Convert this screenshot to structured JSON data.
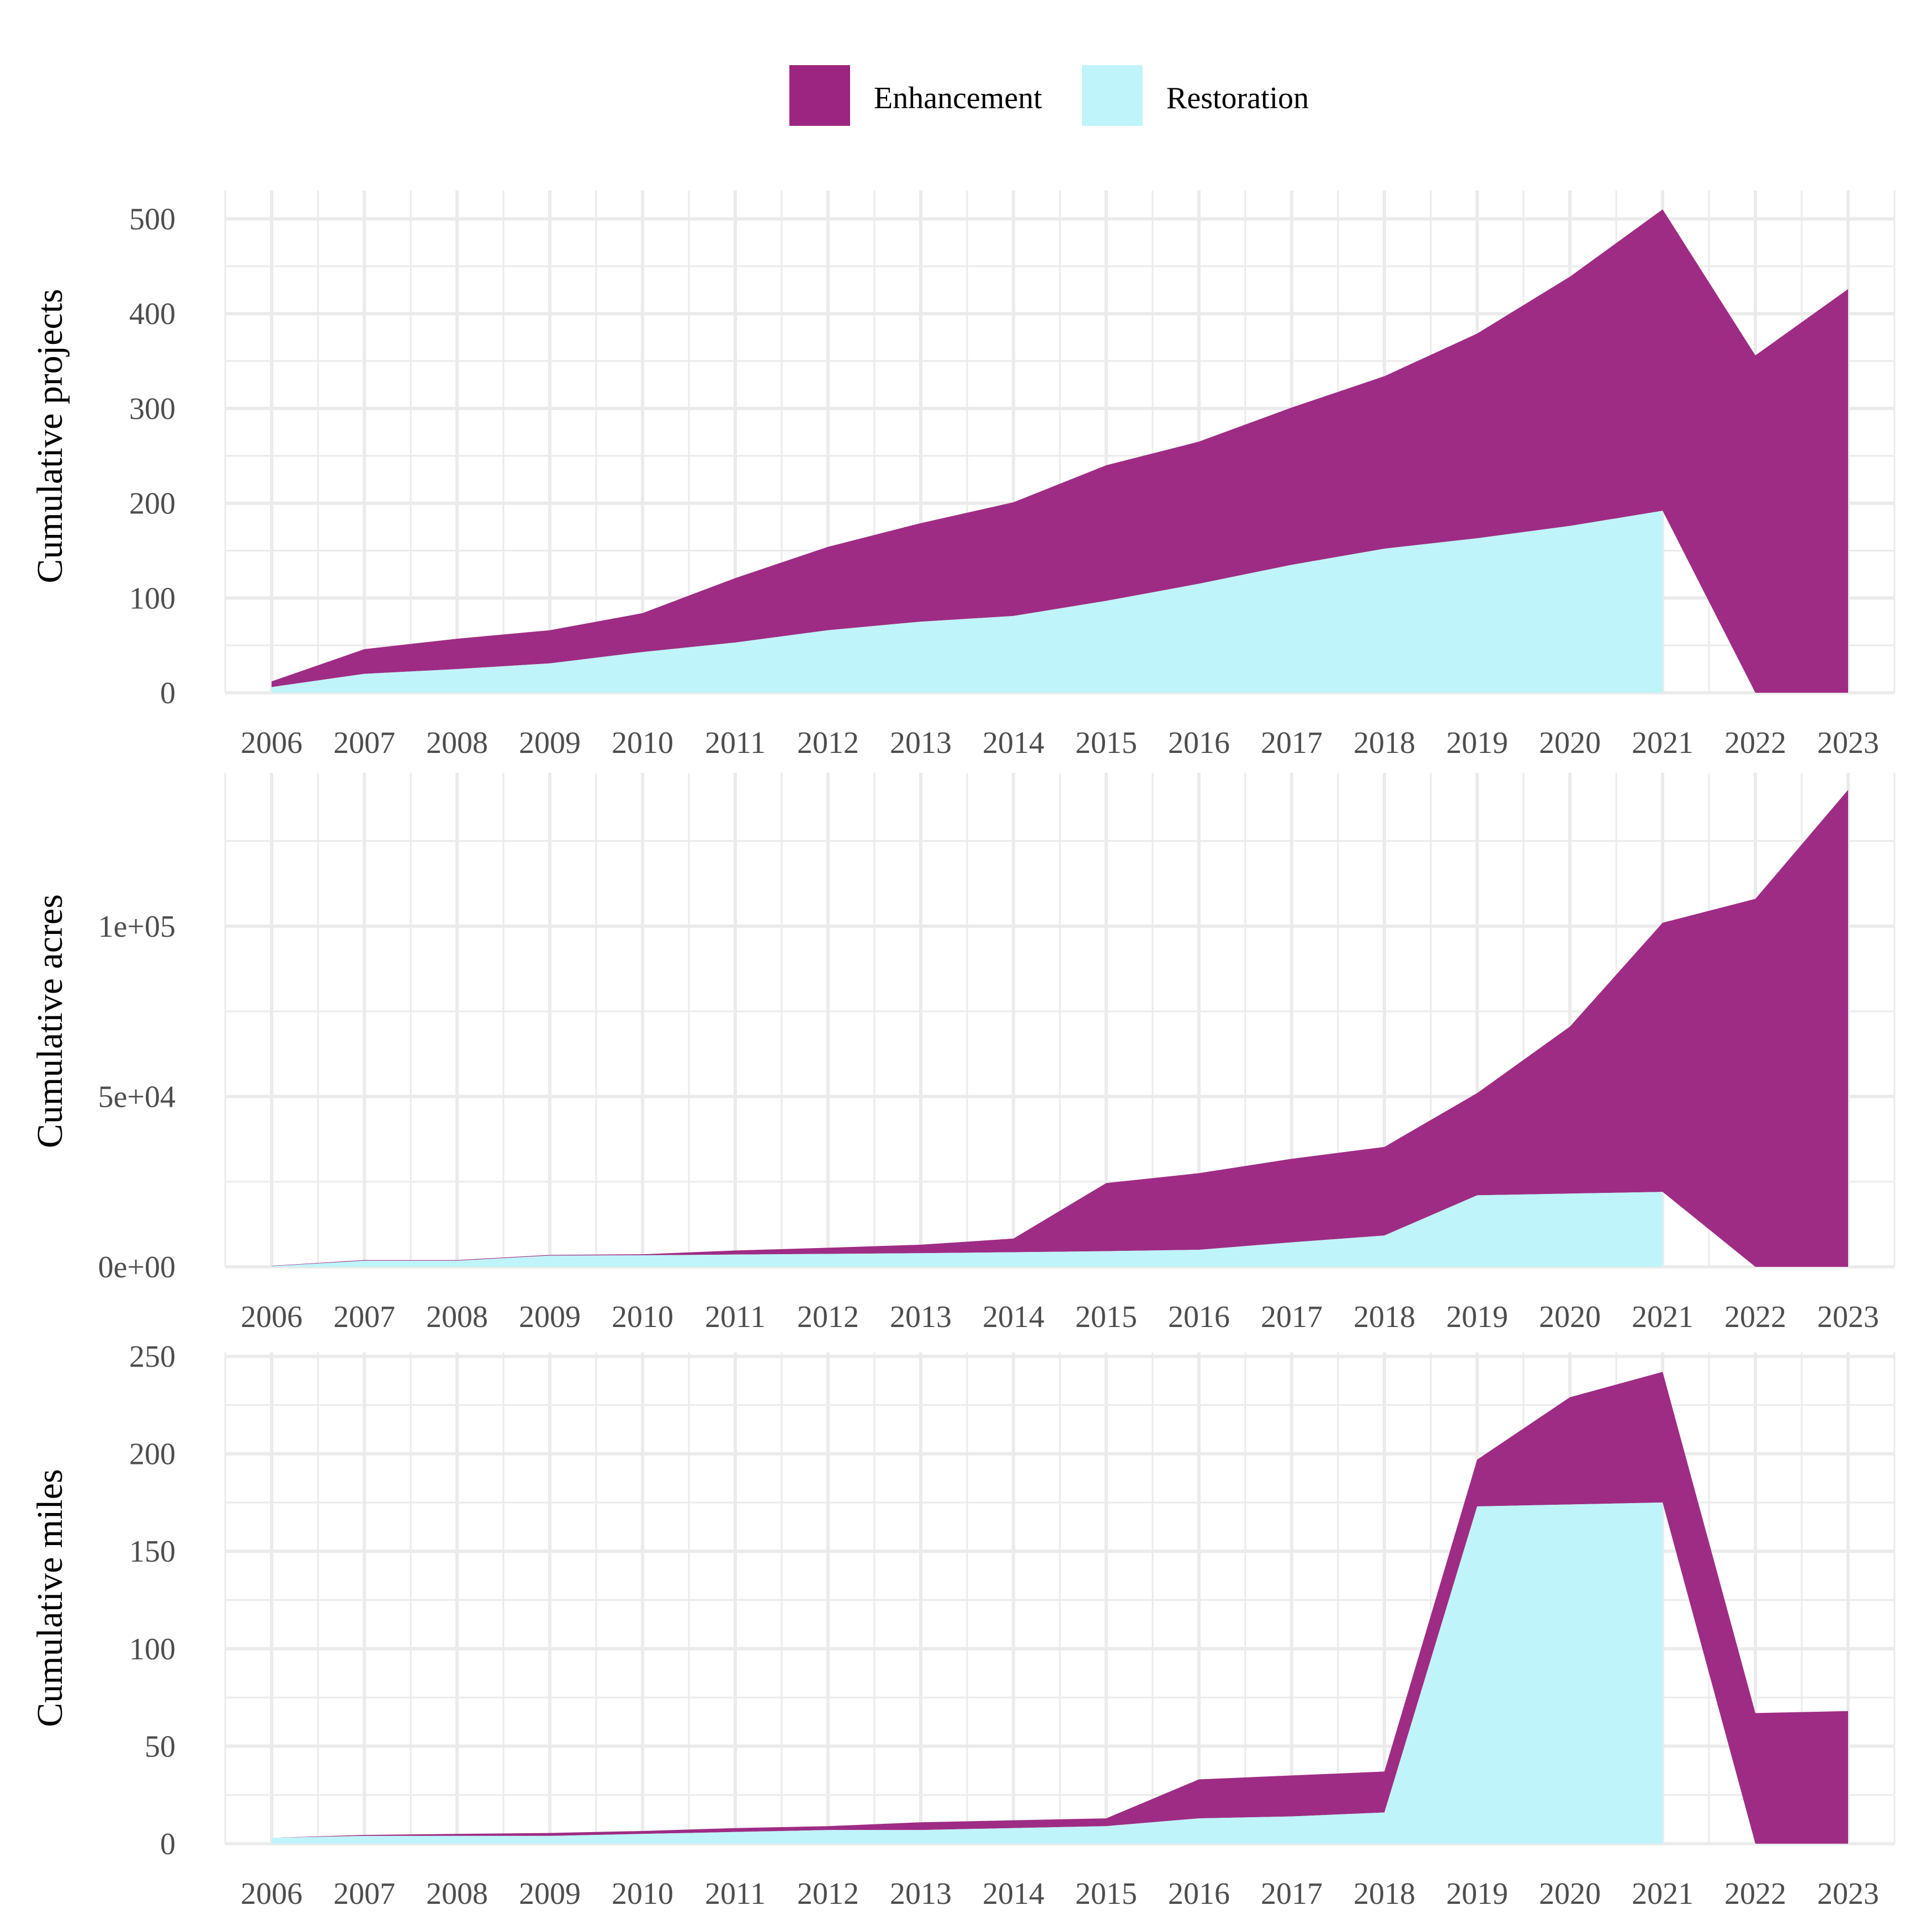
{
  "colors": {
    "Enhancement": "#9b2580",
    "Restoration": "#bff4fa",
    "grid": "#ebebeb"
  },
  "legend": {
    "position": "top",
    "items": [
      {
        "key": "Enhancement",
        "label": "Enhancement"
      },
      {
        "key": "Restoration",
        "label": "Restoration"
      }
    ]
  },
  "chart_data": [
    {
      "type": "area",
      "stacked": true,
      "ylabel": "Cumulative projects",
      "xlim": [
        2005.5,
        2023.5
      ],
      "ylim": [
        0,
        530
      ],
      "xticks": [
        2006,
        2007,
        2008,
        2009,
        2010,
        2011,
        2012,
        2013,
        2014,
        2015,
        2016,
        2017,
        2018,
        2019,
        2020,
        2021,
        2022,
        2023
      ],
      "yticks": [
        0,
        100,
        200,
        300,
        400,
        500
      ],
      "ytick_labels": [
        "0",
        "100",
        "200",
        "300",
        "400",
        "500"
      ],
      "grid": true,
      "series": [
        {
          "name": "Restoration",
          "points": [
            [
              2006,
              6
            ],
            [
              2007,
              20
            ],
            [
              2008,
              25
            ],
            [
              2009,
              31
            ],
            [
              2010,
              43
            ],
            [
              2011,
              53
            ],
            [
              2012,
              66
            ],
            [
              2013,
              75
            ],
            [
              2014,
              81
            ],
            [
              2015,
              97
            ],
            [
              2016,
              115
            ],
            [
              2017,
              135
            ],
            [
              2018,
              152
            ],
            [
              2019,
              163
            ],
            [
              2020,
              176
            ],
            [
              2021,
              192
            ]
          ]
        },
        {
          "name": "Enhancement",
          "points": [
            [
              2006,
              6
            ],
            [
              2007,
              26
            ],
            [
              2008,
              32
            ],
            [
              2009,
              35
            ],
            [
              2010,
              41
            ],
            [
              2011,
              68
            ],
            [
              2012,
              88
            ],
            [
              2013,
              104
            ],
            [
              2014,
              120
            ],
            [
              2015,
              143
            ],
            [
              2016,
              150
            ],
            [
              2017,
              166
            ],
            [
              2018,
              182
            ],
            [
              2019,
              216
            ],
            [
              2020,
              263
            ],
            [
              2021,
              318
            ],
            [
              2022,
              356
            ],
            [
              2023,
              426
            ]
          ]
        }
      ]
    },
    {
      "type": "area",
      "stacked": true,
      "ylabel": "Cumulative acres",
      "xlim": [
        2005.5,
        2023.5
      ],
      "ylim": [
        0,
        145000
      ],
      "xticks": [
        2006,
        2007,
        2008,
        2009,
        2010,
        2011,
        2012,
        2013,
        2014,
        2015,
        2016,
        2017,
        2018,
        2019,
        2020,
        2021,
        2022,
        2023
      ],
      "yticks": [
        0,
        50000,
        100000
      ],
      "ytick_labels": [
        "0e+00",
        "5e+04",
        "1e+05"
      ],
      "grid": true,
      "series": [
        {
          "name": "Restoration",
          "points": [
            [
              2006,
              200
            ],
            [
              2007,
              1800
            ],
            [
              2008,
              1800
            ],
            [
              2009,
              3300
            ],
            [
              2010,
              3400
            ],
            [
              2011,
              3600
            ],
            [
              2012,
              3800
            ],
            [
              2013,
              4000
            ],
            [
              2014,
              4300
            ],
            [
              2015,
              4600
            ],
            [
              2016,
              5000
            ],
            [
              2017,
              7200
            ],
            [
              2018,
              9200
            ],
            [
              2019,
              21000
            ],
            [
              2020,
              21500
            ],
            [
              2021,
              22000
            ]
          ]
        },
        {
          "name": "Enhancement",
          "points": [
            [
              2006,
              100
            ],
            [
              2007,
              200
            ],
            [
              2008,
              200
            ],
            [
              2009,
              200
            ],
            [
              2010,
              300
            ],
            [
              2011,
              1200
            ],
            [
              2012,
              1800
            ],
            [
              2013,
              2500
            ],
            [
              2014,
              4000
            ],
            [
              2015,
              20000
            ],
            [
              2016,
              22500
            ],
            [
              2017,
              24500
            ],
            [
              2018,
              26000
            ],
            [
              2019,
              30000
            ],
            [
              2020,
              49000
            ],
            [
              2021,
              79000
            ],
            [
              2022,
              108000
            ],
            [
              2023,
              140000
            ]
          ]
        }
      ]
    },
    {
      "type": "area",
      "stacked": true,
      "ylabel": "Cumulative miles",
      "xlim": [
        2005.5,
        2023.5
      ],
      "ylim": [
        0,
        252
      ],
      "xticks": [
        2006,
        2007,
        2008,
        2009,
        2010,
        2011,
        2012,
        2013,
        2014,
        2015,
        2016,
        2017,
        2018,
        2019,
        2020,
        2021,
        2022,
        2023
      ],
      "yticks": [
        0,
        50,
        100,
        150,
        200,
        250
      ],
      "ytick_labels": [
        "0",
        "50",
        "100",
        "150",
        "200",
        "250"
      ],
      "grid": true,
      "series": [
        {
          "name": "Restoration",
          "points": [
            [
              2006,
              3
            ],
            [
              2007,
              4
            ],
            [
              2008,
              4
            ],
            [
              2009,
              4
            ],
            [
              2010,
              5
            ],
            [
              2011,
              6
            ],
            [
              2012,
              7
            ],
            [
              2013,
              7
            ],
            [
              2014,
              8
            ],
            [
              2015,
              9
            ],
            [
              2016,
              13
            ],
            [
              2017,
              14
            ],
            [
              2018,
              16
            ],
            [
              2019,
              173
            ],
            [
              2020,
              174
            ],
            [
              2021,
              175
            ]
          ]
        },
        {
          "name": "Enhancement",
          "points": [
            [
              2006,
              0
            ],
            [
              2007,
              0.5
            ],
            [
              2008,
              1
            ],
            [
              2009,
              1.5
            ],
            [
              2010,
              1.5
            ],
            [
              2011,
              2
            ],
            [
              2012,
              2
            ],
            [
              2013,
              4
            ],
            [
              2014,
              4
            ],
            [
              2015,
              4
            ],
            [
              2016,
              20
            ],
            [
              2017,
              21
            ],
            [
              2018,
              21
            ],
            [
              2019,
              24
            ],
            [
              2020,
              55
            ],
            [
              2021,
              67
            ],
            [
              2022,
              67
            ],
            [
              2023,
              68
            ]
          ]
        }
      ]
    }
  ]
}
